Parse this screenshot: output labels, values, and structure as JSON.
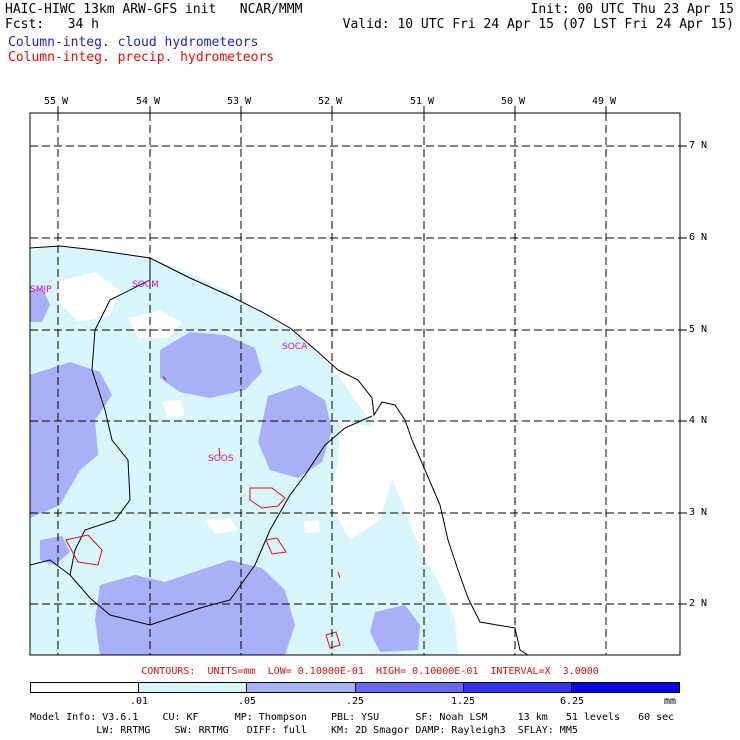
{
  "header": {
    "title_left": "HAIC-HIWC 13km ARW-GFS init   NCAR/MMM",
    "fcst_line": "Fcst:   34 h",
    "init_line": "Init: 00 UTC Thu 23 Apr 15",
    "valid_line": "Valid: 10 UTC Fri 24 Apr 15 (07 LST Fri 24 Apr 15)",
    "field1": "Column-integ. cloud hydrometeors",
    "field2": "Column-integ. precip. hydrometeors"
  },
  "map": {
    "lon_labels": [
      "55 W",
      "54 W",
      "53 W",
      "52 W",
      "51 W",
      "50 W",
      "49 W"
    ],
    "lat_labels": [
      "7 N",
      "6 N",
      "5 N",
      "4 N",
      "3 N",
      "2 N"
    ],
    "stations": [
      "SMJP",
      "SOCM",
      "SOCA",
      "SOOS"
    ]
  },
  "contours": {
    "line": "CONTOURS:  UNITS=mm  LOW= 0.10000E-01  HIGH= 0.10000E-01  INTERVAL=X  3.0000"
  },
  "colorbar": {
    "colors": [
      "#ffffff",
      "#d8f6fc",
      "#a8b0f8",
      "#6868f0",
      "#3434f2",
      "#0808e8"
    ],
    "labels": [
      ".01",
      ".05",
      ".25",
      "1.25",
      "6.25"
    ],
    "units": "mm"
  },
  "footer": {
    "line1": "Model Info: V3.6.1    CU: KF      MP: Thompson    PBL: YSU      SF: Noah LSM     13 km   51 levels   60 sec",
    "line2": "           LW: RRTMG    SW: RRTMG   DIFF: full    KM: 2D Smagor DAMP: Rayleigh3  SFLAY: MM5"
  }
}
